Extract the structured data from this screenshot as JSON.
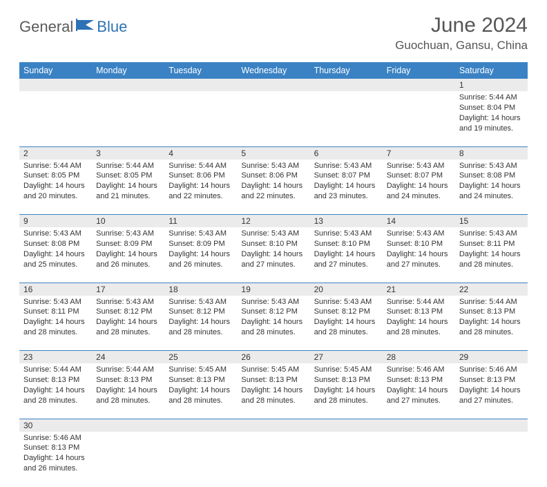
{
  "logo": {
    "part1": "General",
    "part2": "Blue"
  },
  "title": "June 2024",
  "location": "Guochuan, Gansu, China",
  "colors": {
    "header_bg": "#3a82c4",
    "header_text": "#ffffff",
    "daynum_bg": "#ebebeb",
    "row_border": "#3a82c4",
    "logo_gray": "#5a5a5a",
    "logo_blue": "#2d72b5"
  },
  "weekdays": [
    "Sunday",
    "Monday",
    "Tuesday",
    "Wednesday",
    "Thursday",
    "Friday",
    "Saturday"
  ],
  "weeks": [
    [
      null,
      null,
      null,
      null,
      null,
      null,
      {
        "n": "1",
        "sr": "5:44 AM",
        "ss": "8:04 PM",
        "dl": "14 hours and 19 minutes."
      }
    ],
    [
      {
        "n": "2",
        "sr": "5:44 AM",
        "ss": "8:05 PM",
        "dl": "14 hours and 20 minutes."
      },
      {
        "n": "3",
        "sr": "5:44 AM",
        "ss": "8:05 PM",
        "dl": "14 hours and 21 minutes."
      },
      {
        "n": "4",
        "sr": "5:44 AM",
        "ss": "8:06 PM",
        "dl": "14 hours and 22 minutes."
      },
      {
        "n": "5",
        "sr": "5:43 AM",
        "ss": "8:06 PM",
        "dl": "14 hours and 22 minutes."
      },
      {
        "n": "6",
        "sr": "5:43 AM",
        "ss": "8:07 PM",
        "dl": "14 hours and 23 minutes."
      },
      {
        "n": "7",
        "sr": "5:43 AM",
        "ss": "8:07 PM",
        "dl": "14 hours and 24 minutes."
      },
      {
        "n": "8",
        "sr": "5:43 AM",
        "ss": "8:08 PM",
        "dl": "14 hours and 24 minutes."
      }
    ],
    [
      {
        "n": "9",
        "sr": "5:43 AM",
        "ss": "8:08 PM",
        "dl": "14 hours and 25 minutes."
      },
      {
        "n": "10",
        "sr": "5:43 AM",
        "ss": "8:09 PM",
        "dl": "14 hours and 26 minutes."
      },
      {
        "n": "11",
        "sr": "5:43 AM",
        "ss": "8:09 PM",
        "dl": "14 hours and 26 minutes."
      },
      {
        "n": "12",
        "sr": "5:43 AM",
        "ss": "8:10 PM",
        "dl": "14 hours and 27 minutes."
      },
      {
        "n": "13",
        "sr": "5:43 AM",
        "ss": "8:10 PM",
        "dl": "14 hours and 27 minutes."
      },
      {
        "n": "14",
        "sr": "5:43 AM",
        "ss": "8:10 PM",
        "dl": "14 hours and 27 minutes."
      },
      {
        "n": "15",
        "sr": "5:43 AM",
        "ss": "8:11 PM",
        "dl": "14 hours and 28 minutes."
      }
    ],
    [
      {
        "n": "16",
        "sr": "5:43 AM",
        "ss": "8:11 PM",
        "dl": "14 hours and 28 minutes."
      },
      {
        "n": "17",
        "sr": "5:43 AM",
        "ss": "8:12 PM",
        "dl": "14 hours and 28 minutes."
      },
      {
        "n": "18",
        "sr": "5:43 AM",
        "ss": "8:12 PM",
        "dl": "14 hours and 28 minutes."
      },
      {
        "n": "19",
        "sr": "5:43 AM",
        "ss": "8:12 PM",
        "dl": "14 hours and 28 minutes."
      },
      {
        "n": "20",
        "sr": "5:43 AM",
        "ss": "8:12 PM",
        "dl": "14 hours and 28 minutes."
      },
      {
        "n": "21",
        "sr": "5:44 AM",
        "ss": "8:13 PM",
        "dl": "14 hours and 28 minutes."
      },
      {
        "n": "22",
        "sr": "5:44 AM",
        "ss": "8:13 PM",
        "dl": "14 hours and 28 minutes."
      }
    ],
    [
      {
        "n": "23",
        "sr": "5:44 AM",
        "ss": "8:13 PM",
        "dl": "14 hours and 28 minutes."
      },
      {
        "n": "24",
        "sr": "5:44 AM",
        "ss": "8:13 PM",
        "dl": "14 hours and 28 minutes."
      },
      {
        "n": "25",
        "sr": "5:45 AM",
        "ss": "8:13 PM",
        "dl": "14 hours and 28 minutes."
      },
      {
        "n": "26",
        "sr": "5:45 AM",
        "ss": "8:13 PM",
        "dl": "14 hours and 28 minutes."
      },
      {
        "n": "27",
        "sr": "5:45 AM",
        "ss": "8:13 PM",
        "dl": "14 hours and 28 minutes."
      },
      {
        "n": "28",
        "sr": "5:46 AM",
        "ss": "8:13 PM",
        "dl": "14 hours and 27 minutes."
      },
      {
        "n": "29",
        "sr": "5:46 AM",
        "ss": "8:13 PM",
        "dl": "14 hours and 27 minutes."
      }
    ],
    [
      {
        "n": "30",
        "sr": "5:46 AM",
        "ss": "8:13 PM",
        "dl": "14 hours and 26 minutes."
      },
      null,
      null,
      null,
      null,
      null,
      null
    ]
  ],
  "labels": {
    "sunrise": "Sunrise:",
    "sunset": "Sunset:",
    "daylight": "Daylight:"
  }
}
